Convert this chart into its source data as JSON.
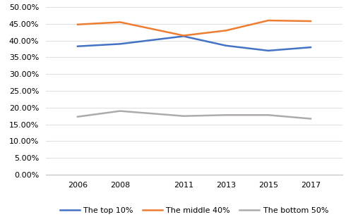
{
  "years": [
    2006,
    2008,
    2011,
    2013,
    2015,
    2017
  ],
  "top10": [
    0.383,
    0.39,
    0.413,
    0.385,
    0.37,
    0.38
  ],
  "middle40": [
    0.448,
    0.455,
    0.415,
    0.43,
    0.46,
    0.458
  ],
  "bottom50": [
    0.173,
    0.19,
    0.175,
    0.178,
    0.178,
    0.167
  ],
  "top10_color": "#4472C4",
  "middle40_color": "#ED7D31",
  "bottom50_color": "#AEAAAA",
  "ylim": [
    0.0,
    0.5
  ],
  "yticks": [
    0.0,
    0.05,
    0.1,
    0.15,
    0.2,
    0.25,
    0.3,
    0.35,
    0.4,
    0.45,
    0.5
  ],
  "legend_labels": [
    "The top 10%",
    "The middle 40%",
    "The bottom 50%"
  ],
  "bg_color": "#FFFFFF",
  "grid_color": "#E0E0E0"
}
